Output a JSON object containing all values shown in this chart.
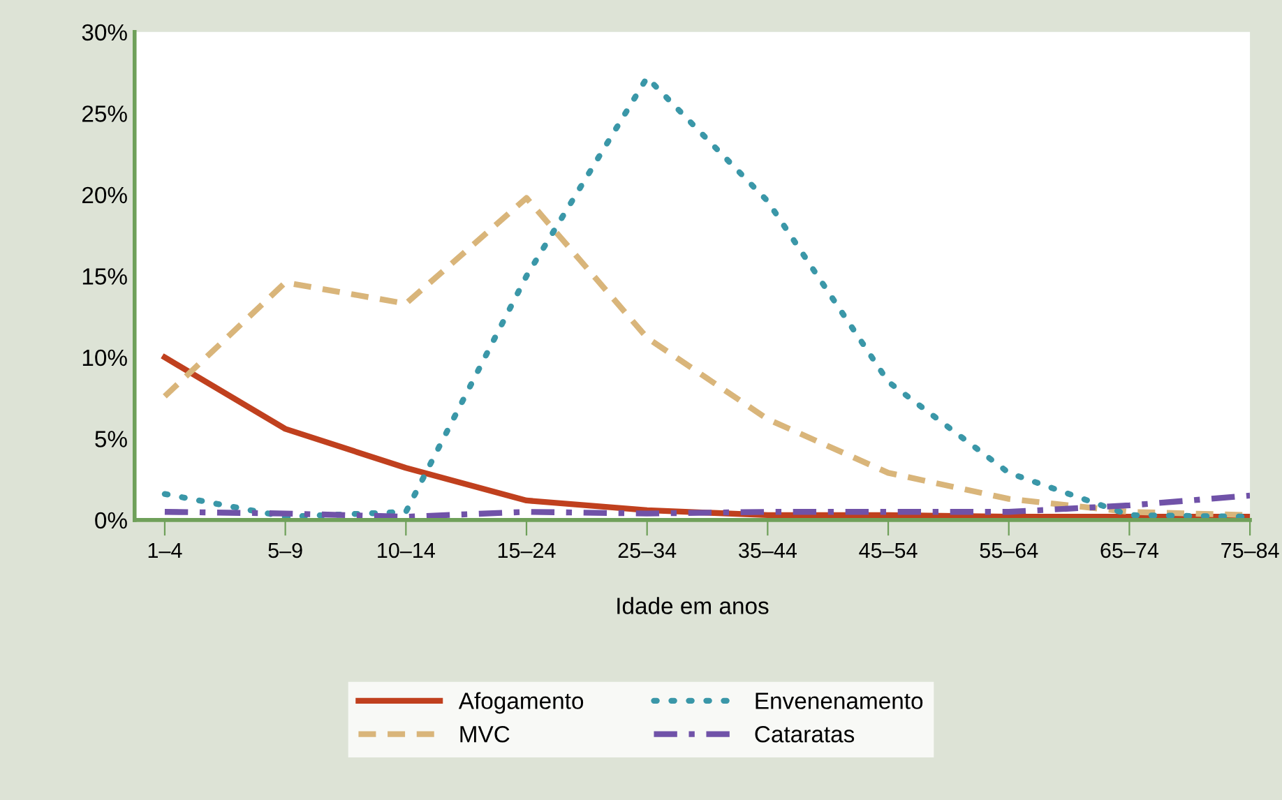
{
  "chart_data": {
    "type": "line",
    "xlabel": "Idade em anos",
    "categories": [
      "1–4",
      "5–9",
      "10–14",
      "15–24",
      "25–34",
      "35–44",
      "45–54",
      "55–64",
      "65–74",
      "75–84"
    ],
    "series": [
      {
        "name": "Afogamento",
        "color": "#c0401e",
        "line_style": "solid",
        "values": [
          10,
          5.6,
          3.2,
          1.2,
          0.6,
          0.3,
          0.3,
          0.2,
          0.2,
          0.2
        ]
      },
      {
        "name": "MVC",
        "color": "#d9b57a",
        "line_style": "dashed",
        "values": [
          7.6,
          14.6,
          13.3,
          19.8,
          11.2,
          6.2,
          2.9,
          1.3,
          0.5,
          0.3
        ]
      },
      {
        "name": "Envenenamento",
        "color": "#3a97a8",
        "line_style": "dotted",
        "values": [
          1.6,
          0.2,
          0.5,
          15,
          27.2,
          19.6,
          8.5,
          2.9,
          0.3,
          0.2
        ]
      },
      {
        "name": "Cataratas",
        "color": "#7052a8",
        "line_style": "dashdot",
        "values": [
          0.5,
          0.4,
          0.2,
          0.5,
          0.4,
          0.5,
          0.5,
          0.5,
          0.9,
          1.5
        ]
      }
    ],
    "ylim": [
      0,
      30
    ],
    "yticks": [
      {
        "value": 0,
        "label": "0%"
      },
      {
        "value": 5,
        "label": "5%"
      },
      {
        "value": 10,
        "label": "10%"
      },
      {
        "value": 15,
        "label": "15%"
      },
      {
        "value": 20,
        "label": "20%"
      },
      {
        "value": 25,
        "label": "25%"
      },
      {
        "value": 30,
        "label": "30%"
      }
    ],
    "grid": false,
    "marker": "none",
    "legend": "bottom"
  }
}
